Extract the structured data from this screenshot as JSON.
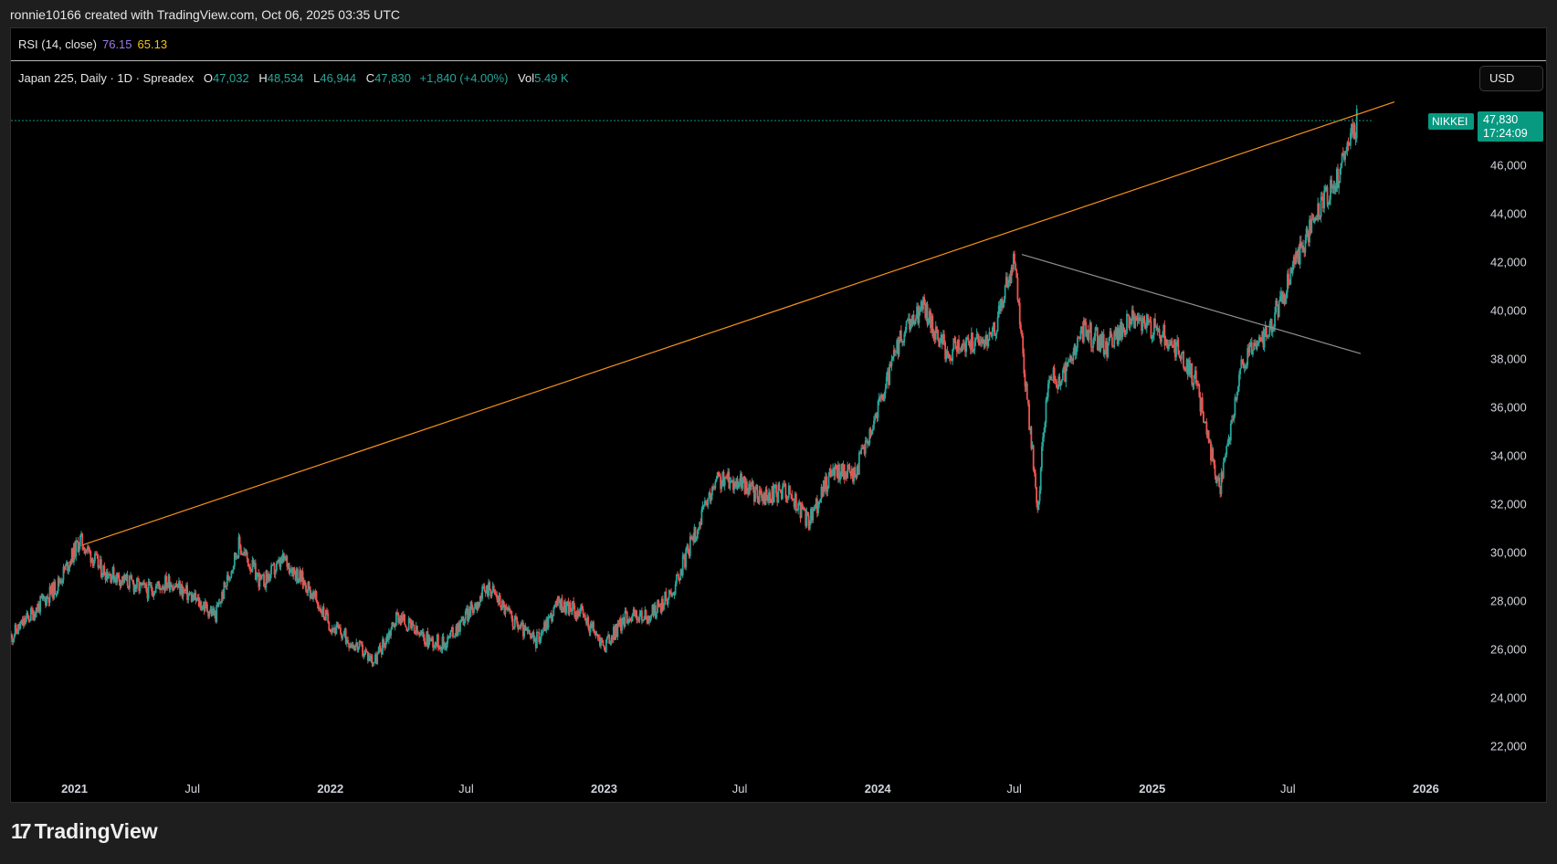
{
  "header": {
    "attribution": "ronnie10166 created with TradingView.com, Oct 06, 2025 03:35 UTC"
  },
  "rsi": {
    "label": "RSI (14, close)",
    "value1": "76.15",
    "value2": "65.13",
    "color1": "#9c7ce6",
    "color2": "#f0c419"
  },
  "legend": {
    "symbol": "Japan 225, Daily · 1D · Spreadex",
    "o_label": "O",
    "o": "47,032",
    "h_label": "H",
    "h": "48,534",
    "l_label": "L",
    "l": "46,944",
    "c_label": "C",
    "c": "47,830",
    "change": "+1,840 (+4.00%)",
    "vol_label": "Vol",
    "vol": "5.49 K"
  },
  "currency": "USD",
  "price_tag": {
    "name": "NIKKEI",
    "price": "47,830",
    "countdown": "17:24:09",
    "color": "#089981"
  },
  "footer": {
    "logo_text": "TradingView",
    "logo_mark": "17"
  },
  "chart_data": {
    "type": "candlestick",
    "ylim": [
      21000,
      49000
    ],
    "y_ticks": [
      "22,000",
      "24,000",
      "26,000",
      "28,000",
      "30,000",
      "32,000",
      "34,000",
      "36,000",
      "38,000",
      "40,000",
      "42,000",
      "44,000",
      "46,000"
    ],
    "x_ticks": [
      {
        "label": "2021",
        "bold": true,
        "date": "2021-01-01"
      },
      {
        "label": "Jul",
        "bold": false,
        "date": "2021-07-01"
      },
      {
        "label": "2022",
        "bold": true,
        "date": "2022-01-01"
      },
      {
        "label": "Jul",
        "bold": false,
        "date": "2022-07-01"
      },
      {
        "label": "2023",
        "bold": true,
        "date": "2023-01-01"
      },
      {
        "label": "Jul",
        "bold": false,
        "date": "2023-07-01"
      },
      {
        "label": "2024",
        "bold": true,
        "date": "2024-01-01"
      },
      {
        "label": "Jul",
        "bold": false,
        "date": "2024-07-01"
      },
      {
        "label": "2025",
        "bold": true,
        "date": "2025-01-01"
      },
      {
        "label": "Jul",
        "bold": false,
        "date": "2025-07-01"
      },
      {
        "label": "2026",
        "bold": true,
        "date": "2026-01-01"
      }
    ],
    "up_color": "#26a69a",
    "down_color": "#ef5350",
    "series": [
      {
        "date": "2020-11",
        "value": 26500
      },
      {
        "date": "2021-01",
        "value": 28600
      },
      {
        "date": "2021-02",
        "value": 30500
      },
      {
        "date": "2021-03",
        "value": 29300
      },
      {
        "date": "2021-05",
        "value": 28400
      },
      {
        "date": "2021-06",
        "value": 28800
      },
      {
        "date": "2021-08",
        "value": 27400
      },
      {
        "date": "2021-09",
        "value": 30300
      },
      {
        "date": "2021-10",
        "value": 28700
      },
      {
        "date": "2021-11",
        "value": 29700
      },
      {
        "date": "2021-12",
        "value": 28600
      },
      {
        "date": "2022-01",
        "value": 27000
      },
      {
        "date": "2022-03",
        "value": 25500
      },
      {
        "date": "2022-04",
        "value": 27400
      },
      {
        "date": "2022-05",
        "value": 26500
      },
      {
        "date": "2022-06",
        "value": 26200
      },
      {
        "date": "2022-08",
        "value": 28600
      },
      {
        "date": "2022-09",
        "value": 27200
      },
      {
        "date": "2022-10",
        "value": 26300
      },
      {
        "date": "2022-11",
        "value": 27900
      },
      {
        "date": "2022-12",
        "value": 27500
      },
      {
        "date": "2023-01",
        "value": 26100
      },
      {
        "date": "2023-02",
        "value": 27400
      },
      {
        "date": "2023-03",
        "value": 27300
      },
      {
        "date": "2023-04",
        "value": 28300
      },
      {
        "date": "2023-05",
        "value": 30700
      },
      {
        "date": "2023-06",
        "value": 33000
      },
      {
        "date": "2023-07",
        "value": 32900
      },
      {
        "date": "2023-08",
        "value": 32200
      },
      {
        "date": "2023-09",
        "value": 32600
      },
      {
        "date": "2023-10",
        "value": 31200
      },
      {
        "date": "2023-11",
        "value": 33400
      },
      {
        "date": "2023-12",
        "value": 33200
      },
      {
        "date": "2024-01",
        "value": 35900
      },
      {
        "date": "2024-02",
        "value": 38800
      },
      {
        "date": "2024-03",
        "value": 40200
      },
      {
        "date": "2024-04",
        "value": 38300
      },
      {
        "date": "2024-05",
        "value": 38600
      },
      {
        "date": "2024-06",
        "value": 38900
      },
      {
        "date": "2024-07",
        "value": 42000
      },
      {
        "date": "2024-08",
        "value": 31800
      },
      {
        "date": "2024-08b",
        "value": 37500
      },
      {
        "date": "2024-09",
        "value": 36900
      },
      {
        "date": "2024-10",
        "value": 39200
      },
      {
        "date": "2024-11",
        "value": 38500
      },
      {
        "date": "2024-12",
        "value": 39600
      },
      {
        "date": "2025-01",
        "value": 39300
      },
      {
        "date": "2025-02",
        "value": 38500
      },
      {
        "date": "2025-03",
        "value": 37000
      },
      {
        "date": "2025-04",
        "value": 32500
      },
      {
        "date": "2025-05",
        "value": 37800
      },
      {
        "date": "2025-06",
        "value": 38900
      },
      {
        "date": "2025-07",
        "value": 41100
      },
      {
        "date": "2025-08",
        "value": 43500
      },
      {
        "date": "2025-09",
        "value": 45200
      },
      {
        "date": "2025-10",
        "value": 47830
      }
    ],
    "trendlines": [
      {
        "name": "orange-rising",
        "color": "#f7931a",
        "from": {
          "date": "2021-02-05",
          "value": 30300
        },
        "to": {
          "date": "2025-11-20",
          "value": 48600
        }
      },
      {
        "name": "grey-falling",
        "color": "#8f8f8f",
        "from": {
          "date": "2024-07-11",
          "value": 42300
        },
        "to": {
          "date": "2025-10-06",
          "value": 38200
        }
      }
    ],
    "last_price": 47830
  }
}
